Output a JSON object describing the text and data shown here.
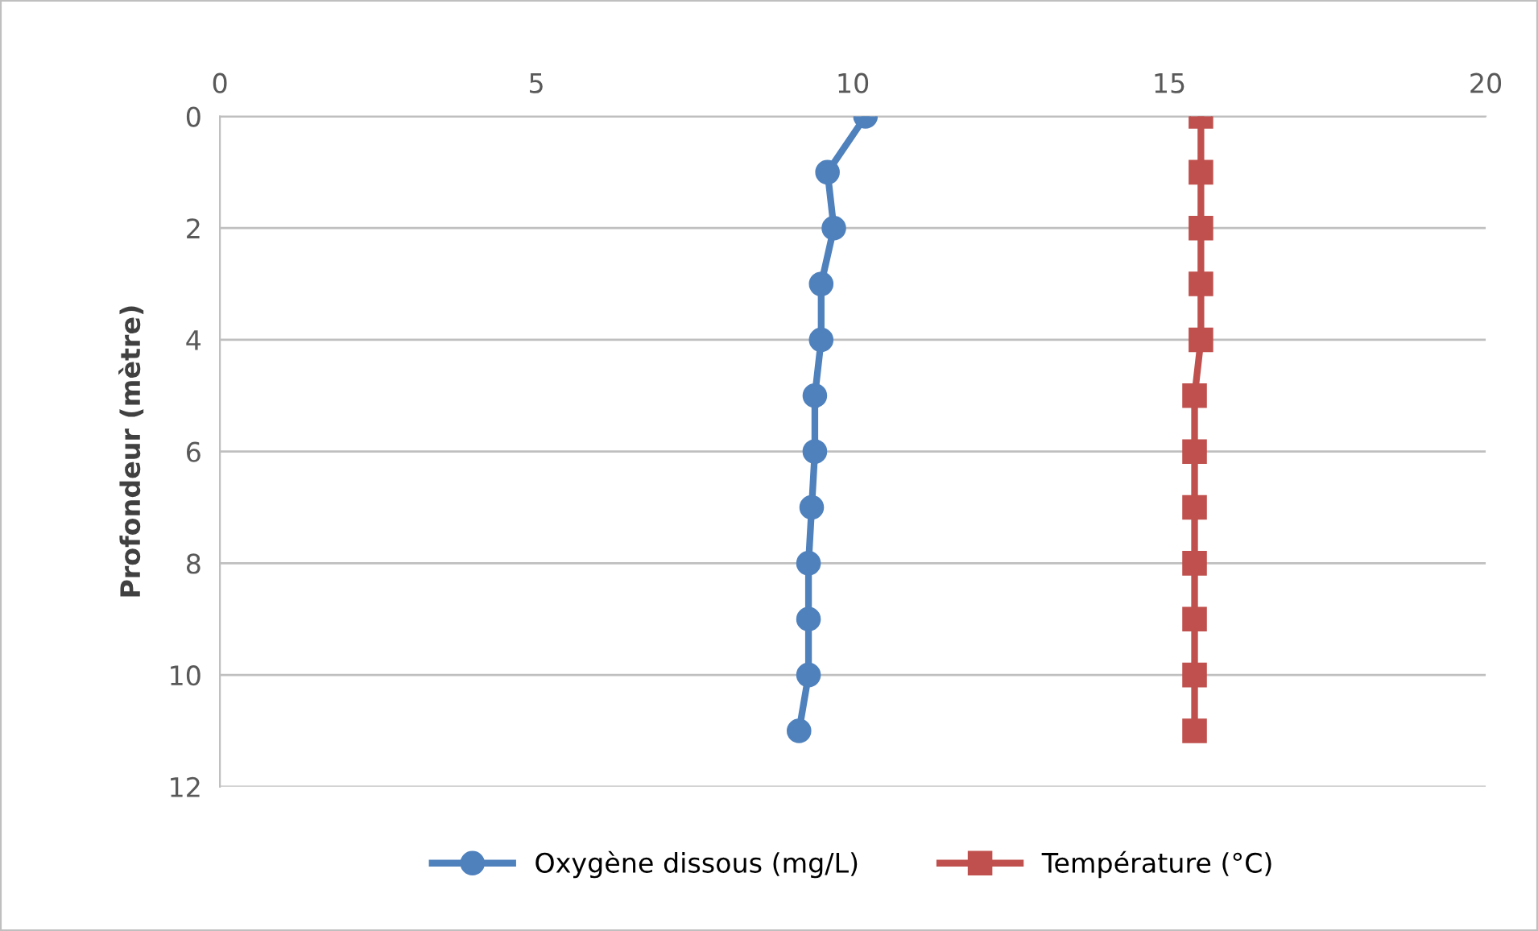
{
  "chart_data": {
    "type": "line",
    "orientation": "horizontal",
    "ylabel": "Profondeur (mètre)",
    "x": [
      0,
      1,
      2,
      3,
      4,
      5,
      6,
      7,
      8,
      9,
      10,
      11
    ],
    "series": [
      {
        "name": "Oxygène dissous (mg/L)",
        "color": "#4f81bd",
        "marker": "circle",
        "values": [
          10.2,
          9.6,
          9.7,
          9.5,
          9.5,
          9.4,
          9.4,
          9.35,
          9.3,
          9.3,
          9.3,
          9.15
        ]
      },
      {
        "name": "Température (°C)",
        "color": "#c0504d",
        "marker": "square",
        "values": [
          15.5,
          15.5,
          15.5,
          15.5,
          15.5,
          15.4,
          15.4,
          15.4,
          15.4,
          15.4,
          15.4,
          15.4
        ]
      }
    ],
    "xlim": [
      0,
      20
    ],
    "xticks": [
      0,
      5,
      10,
      15,
      20
    ],
    "ylim": [
      12,
      0
    ],
    "yticks": [
      0,
      2,
      4,
      6,
      8,
      10,
      12
    ],
    "grid": "y",
    "legend": "bottom",
    "line_style": "solid"
  }
}
